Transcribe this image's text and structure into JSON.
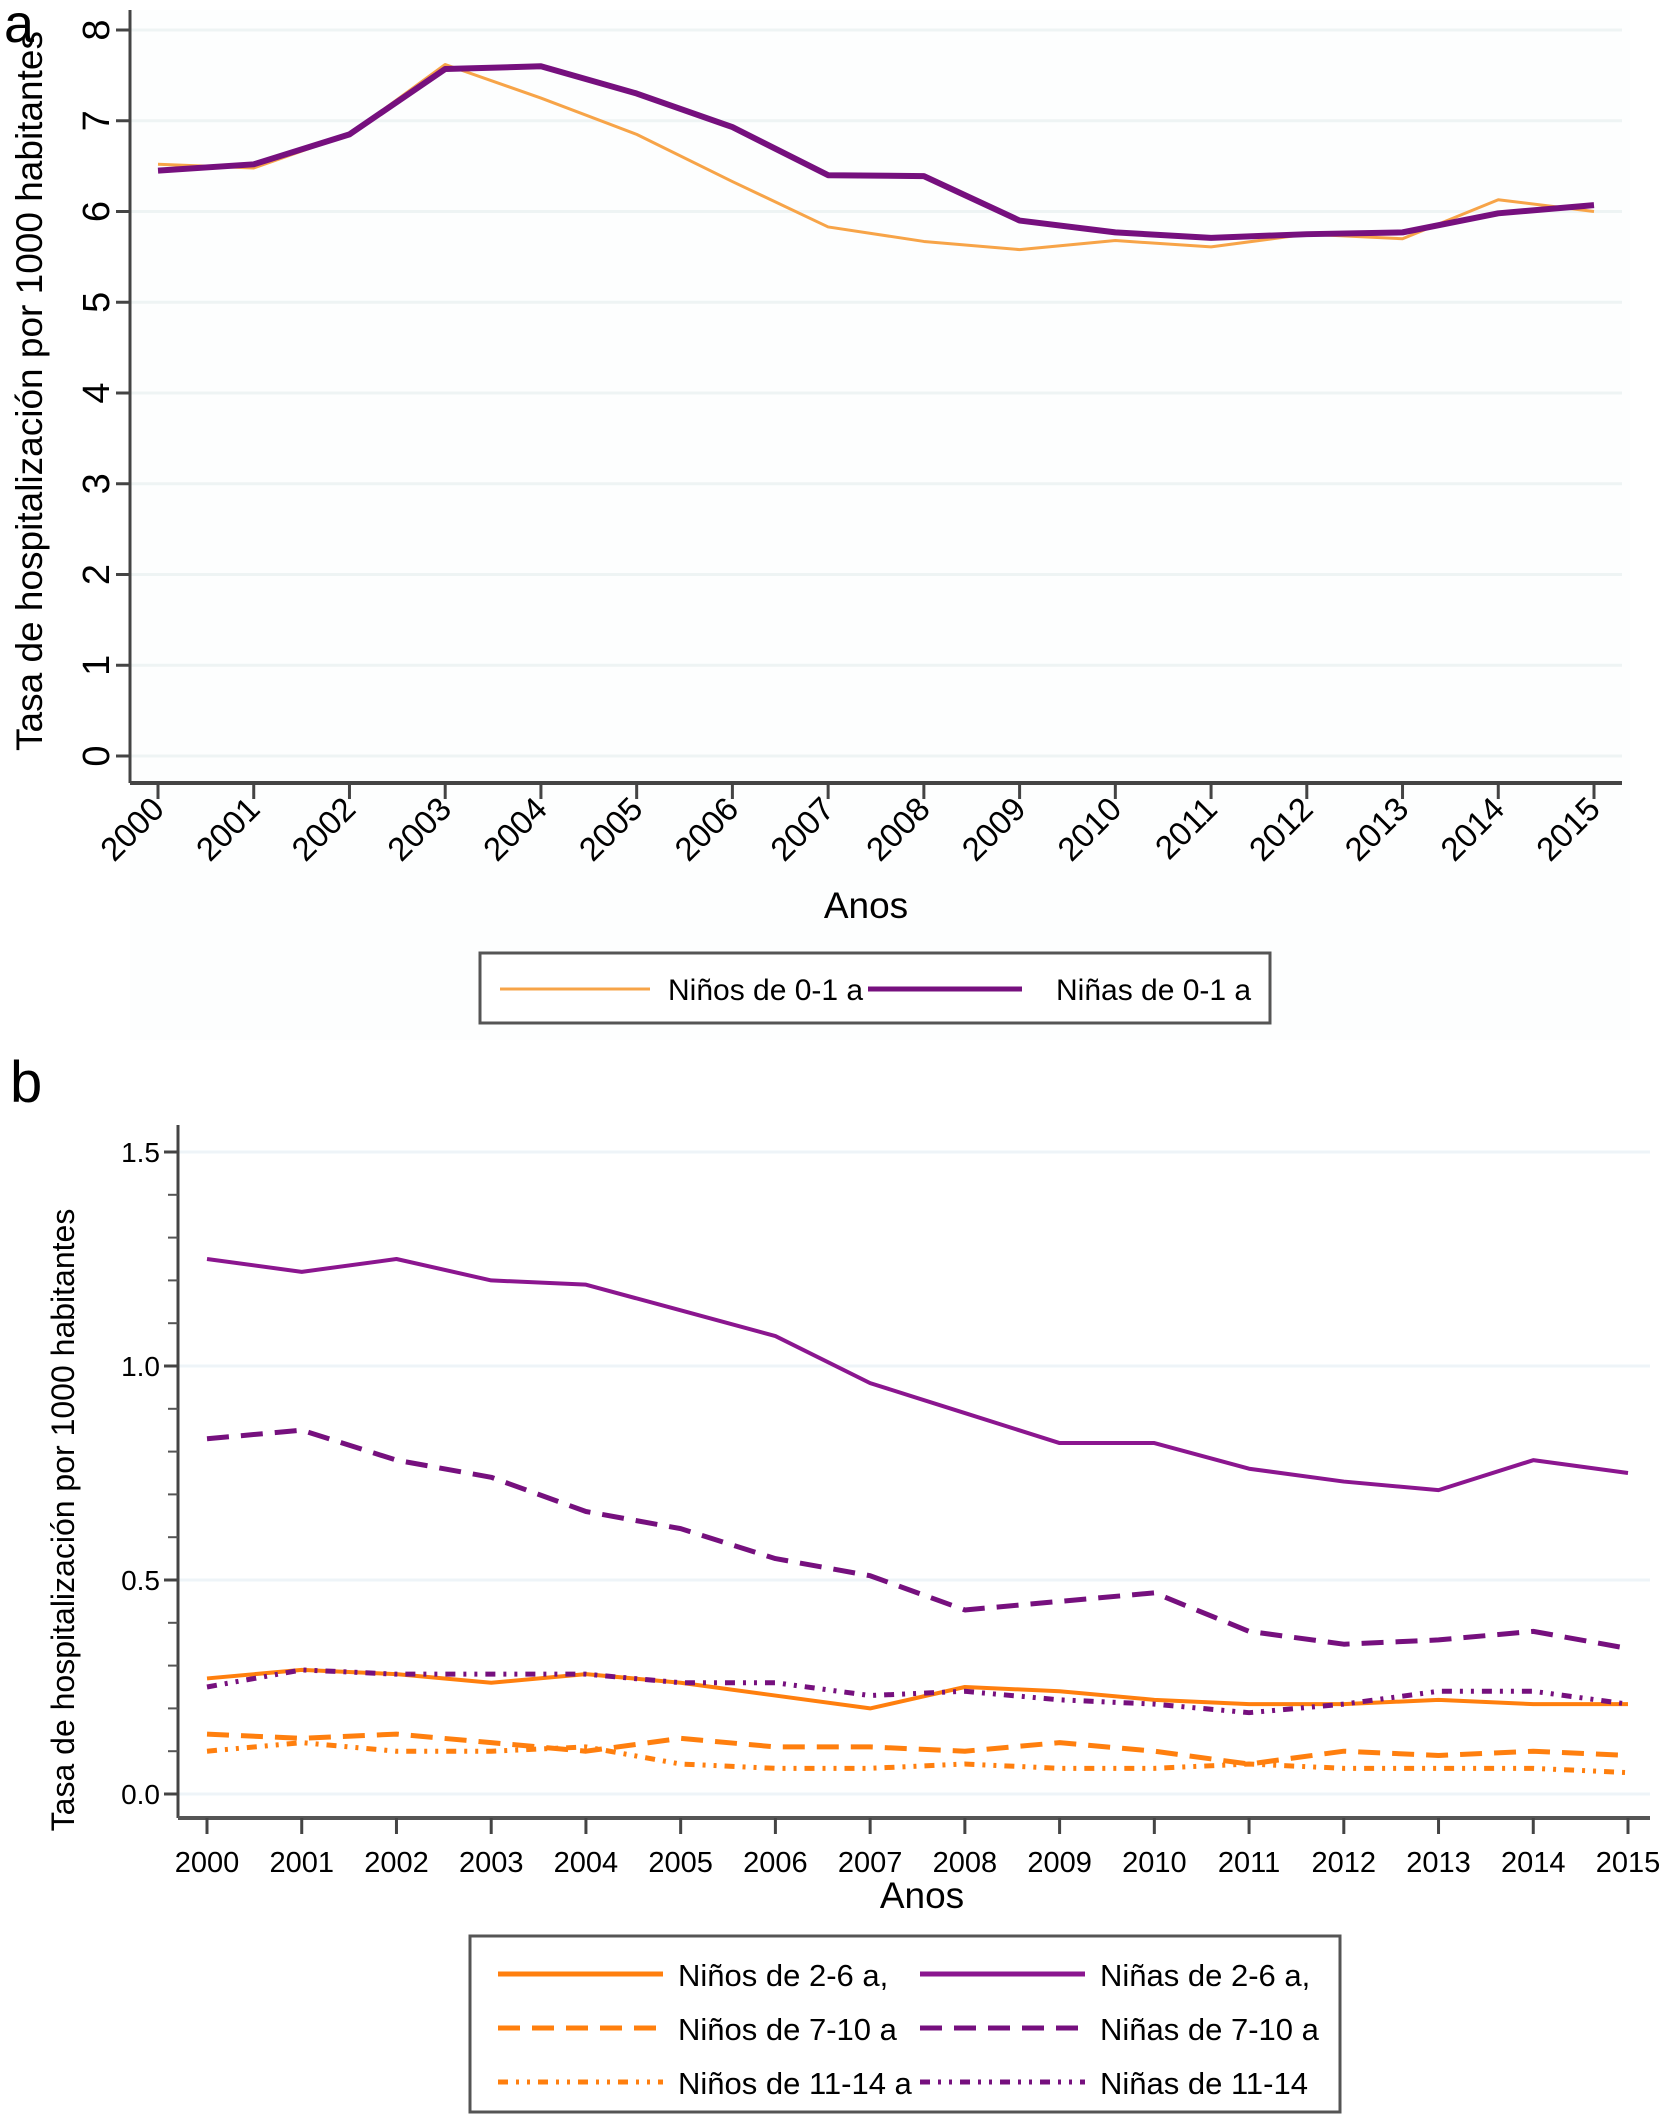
{
  "chart_data": [
    {
      "panel_label": "a",
      "type": "line",
      "title": "",
      "xlabel": "Anos",
      "ylabel": "Tasa de hospitalización por 1000 habitantes",
      "x": [
        2000,
        2001,
        2002,
        2003,
        2004,
        2005,
        2006,
        2007,
        2008,
        2009,
        2010,
        2011,
        2012,
        2013,
        2014,
        2015
      ],
      "x_tick_labels": [
        "2000",
        "2001",
        "2002",
        "2003",
        "2004",
        "2005",
        "2006",
        "2007",
        "2008",
        "2009",
        "2010",
        "2011",
        "2012",
        "2013",
        "2014",
        "2015"
      ],
      "x_tick_rotation": "diagonal",
      "ylim": [
        0,
        8
      ],
      "y_ticks": [
        0,
        1,
        2,
        3,
        4,
        5,
        6,
        7,
        8
      ],
      "y_tick_labels": [
        "0",
        "1",
        "2",
        "3",
        "4",
        "5",
        "6",
        "7",
        "8"
      ],
      "grid": true,
      "legend_position": "bottom",
      "series": [
        {
          "name": "Niños de 0-1 a",
          "color": "#f7a448",
          "style": "solid",
          "weight": "thin",
          "values": [
            6.52,
            6.48,
            6.85,
            7.62,
            7.25,
            6.85,
            6.33,
            5.83,
            5.67,
            5.58,
            5.68,
            5.61,
            5.75,
            5.7,
            6.13,
            6.0
          ]
        },
        {
          "name": "Niñas de 0-1 a",
          "color": "#76107e",
          "style": "solid",
          "weight": "thick",
          "values": [
            6.45,
            6.52,
            6.85,
            7.57,
            7.6,
            7.3,
            6.93,
            6.4,
            6.39,
            5.9,
            5.77,
            5.71,
            5.75,
            5.77,
            5.98,
            6.07
          ]
        }
      ]
    },
    {
      "panel_label": "b",
      "type": "line",
      "title": "",
      "xlabel": "Anos",
      "ylabel": "Tasa de hospitalización por 1000 habitantes",
      "x": [
        2000,
        2001,
        2002,
        2003,
        2004,
        2005,
        2006,
        2007,
        2008,
        2009,
        2010,
        2011,
        2012,
        2013,
        2014,
        2015
      ],
      "x_tick_labels": [
        "2000",
        "2001",
        "2002",
        "2003",
        "2004",
        "2005",
        "2006",
        "2007",
        "2008",
        "2009",
        "2010",
        "2011",
        "2012",
        "2013",
        "2014",
        "2015"
      ],
      "ylim": [
        0,
        1.5
      ],
      "y_ticks": [
        0.0,
        0.5,
        1.0,
        1.5
      ],
      "y_tick_labels": [
        "0.0",
        "0.5",
        "1.0",
        "1.5"
      ],
      "y_minor_ticks": [
        0.1,
        0.2,
        0.3,
        0.4,
        0.6,
        0.7,
        0.8,
        0.9,
        1.1,
        1.2,
        1.3,
        1.4
      ],
      "grid": true,
      "legend_position": "bottom",
      "series": [
        {
          "name": "Niños de 2-6 a,",
          "color": "#ff7f0e",
          "style": "solid",
          "values": [
            0.27,
            0.29,
            0.28,
            0.26,
            0.28,
            0.26,
            0.23,
            0.2,
            0.25,
            0.24,
            0.22,
            0.21,
            0.21,
            0.22,
            0.21,
            0.21
          ]
        },
        {
          "name": "Niñas de 2-6 a,",
          "color": "#8b168f",
          "style": "solid",
          "values": [
            1.25,
            1.22,
            1.25,
            1.2,
            1.19,
            1.13,
            1.07,
            0.96,
            0.89,
            0.82,
            0.82,
            0.76,
            0.73,
            0.71,
            0.78,
            0.75
          ]
        },
        {
          "name": "Niños de 7-10 a",
          "color": "#ff7f0e",
          "style": "dashed",
          "values": [
            0.14,
            0.13,
            0.14,
            0.12,
            0.1,
            0.13,
            0.11,
            0.11,
            0.1,
            0.12,
            0.1,
            0.07,
            0.1,
            0.09,
            0.1,
            0.09
          ]
        },
        {
          "name": "Niñas de 7-10 a",
          "color": "#76107e",
          "style": "dashed",
          "values": [
            0.83,
            0.85,
            0.78,
            0.74,
            0.66,
            0.62,
            0.55,
            0.51,
            0.43,
            0.45,
            0.47,
            0.38,
            0.35,
            0.36,
            0.38,
            0.34
          ]
        },
        {
          "name": "Niños de 11-14 a",
          "color": "#ff7f0e",
          "style": "dash-dot-dot",
          "values": [
            0.1,
            0.12,
            0.1,
            0.1,
            0.11,
            0.07,
            0.06,
            0.06,
            0.07,
            0.06,
            0.06,
            0.07,
            0.06,
            0.06,
            0.06,
            0.05
          ]
        },
        {
          "name": "Niñas de 11-14",
          "color": "#76107e",
          "style": "dash-dot-dot",
          "values": [
            0.25,
            0.29,
            0.28,
            0.28,
            0.28,
            0.26,
            0.26,
            0.23,
            0.24,
            0.22,
            0.21,
            0.19,
            0.21,
            0.24,
            0.24,
            0.21
          ]
        }
      ]
    }
  ]
}
